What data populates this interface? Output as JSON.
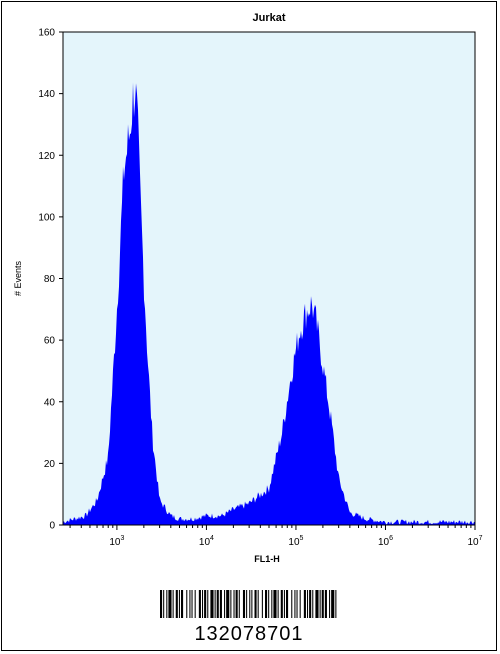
{
  "chart_data": {
    "type": "area",
    "title": "Jurkat",
    "xlabel": "FL1-H",
    "ylabel": "# Events",
    "xscale": "log",
    "xlim": [
      250,
      10000000
    ],
    "ylim": [
      0,
      160
    ],
    "y_ticks": [
      "0",
      "20",
      "40",
      "60",
      "80",
      "100",
      "120",
      "140",
      "160"
    ],
    "x_ticks": [
      {
        "base": "10",
        "exp": "3"
      },
      {
        "base": "10",
        "exp": "4"
      },
      {
        "base": "10",
        "exp": "5"
      },
      {
        "base": "10",
        "exp": "6"
      },
      {
        "base": "10",
        "exp": "7"
      }
    ],
    "plot_background": "#e4f5fb",
    "fill_color": "#0000ff",
    "grid": false,
    "series": [
      {
        "x": [
          250,
          450,
          600,
          800,
          1000,
          1200,
          1400,
          1500,
          1600,
          1700,
          1800,
          2000,
          2200,
          2500,
          3000,
          4000,
          5000,
          7000,
          10000,
          15000,
          20000,
          30000,
          50000,
          70000,
          90000,
          110000,
          130000,
          150000,
          170000,
          200000,
          250000,
          300000,
          400000,
          600000,
          1000000,
          3000000,
          10000000
        ],
        "values": [
          1,
          3,
          8,
          22,
          70,
          115,
          128,
          138,
          142,
          130,
          110,
          80,
          55,
          28,
          8,
          3,
          2,
          2,
          3,
          3,
          5,
          7,
          12,
          30,
          50,
          63,
          69,
          72,
          65,
          52,
          33,
          15,
          4,
          2,
          1,
          1,
          1
        ]
      }
    ]
  },
  "barcode": {
    "number": "132078701"
  }
}
